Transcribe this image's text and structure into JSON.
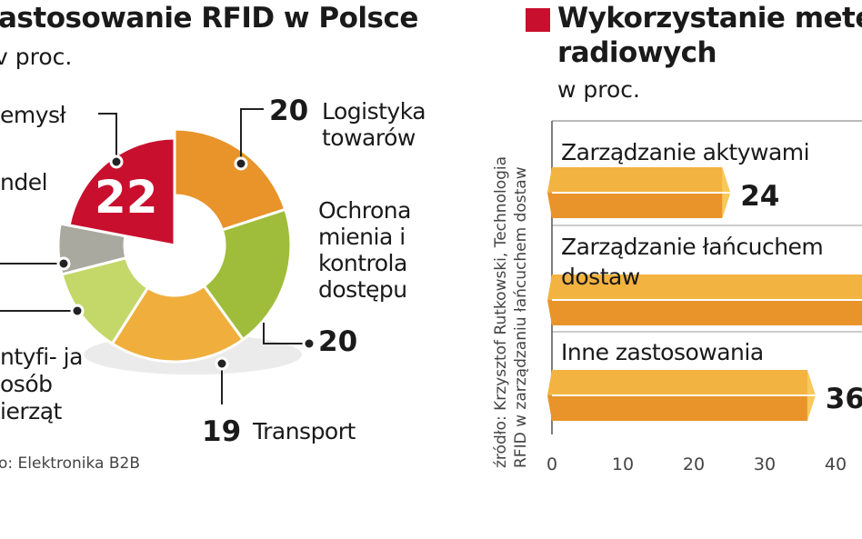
{
  "left": {
    "title": "astosowanie RFID w Polsce",
    "subtitle": "v proc.",
    "source": "o: Elektronika B2B"
  },
  "right": {
    "title_line1": "Wykorzystanie metel",
    "title_line2": "radiowych",
    "subtitle": "w proc.",
    "source_line1": "źródło: Krzysztof Rutkowski, Technologia",
    "source_line2": "RFID w zarządzaniu łańcuchem dostaw",
    "marker_color": "#c8102e"
  },
  "chart_data": [
    {
      "type": "pie",
      "title": "astosowanie RFID w Polsce",
      "unit": "w proc.",
      "slices": [
        {
          "label": "Logistyka towarów",
          "value": 20,
          "value_label": "20",
          "color": "#e8942a"
        },
        {
          "label": "Ochrona mienia i kontrola dostępu",
          "value": 20,
          "value_label": "20",
          "color": "#9fbd3a"
        },
        {
          "label": "Transport",
          "value": 19,
          "value_label": "19",
          "color": "#f0ae3c"
        },
        {
          "label": "ntyfi- ja osób ierząt",
          "value": 12,
          "color": "#c3d868"
        },
        {
          "label": "",
          "value": 7,
          "color": "#a9a99f"
        },
        {
          "label": "emysł",
          "value": 22,
          "value_label": "22",
          "color": "#c8102e"
        }
      ],
      "extra_labels": [
        "ndel"
      ]
    },
    {
      "type": "bar",
      "orientation": "horizontal",
      "categories": [
        "Zarządzanie aktywami",
        "Zarządzanie łańcuchem dostaw",
        "Inne zastosowania"
      ],
      "values": [
        24,
        null,
        36
      ],
      "value_labels": [
        "24",
        "",
        "36"
      ],
      "xticks": [
        "0",
        "10",
        "20",
        "30",
        "40"
      ],
      "xlim": [
        0,
        40
      ],
      "bar_color_top": "#f3b340",
      "bar_color_bottom": "#e8942a"
    }
  ]
}
